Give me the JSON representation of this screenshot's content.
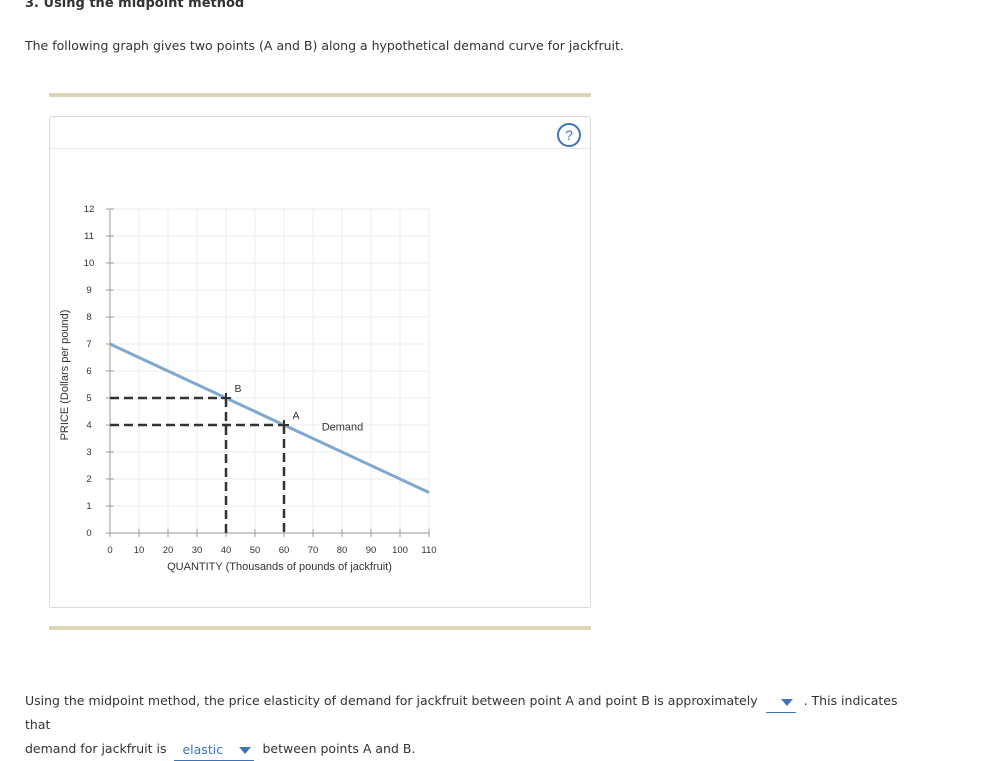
{
  "page": {
    "heading": "3. Using the midpoint method",
    "intro": "The following graph gives two points (A and B) along a hypothetical demand curve for jackfruit."
  },
  "panel": {
    "help_label": "?"
  },
  "chart_data": {
    "type": "line",
    "xlabel": "QUANTITY (Thousands of pounds of jackfruit)",
    "ylabel": "PRICE (Dollars per pound)",
    "xlim": [
      0,
      110
    ],
    "ylim": [
      0,
      12
    ],
    "xticks": [
      0,
      10,
      20,
      30,
      40,
      50,
      60,
      70,
      80,
      90,
      100,
      110
    ],
    "yticks": [
      0,
      1,
      2,
      3,
      4,
      5,
      6,
      7,
      8,
      9,
      10,
      11,
      12
    ],
    "grid": true,
    "series": [
      {
        "name": "Demand",
        "color": "#7fa8d1",
        "x": [
          0,
          110
        ],
        "y": [
          7,
          1.5
        ]
      }
    ],
    "points": [
      {
        "label": "A",
        "x": 60,
        "y": 4
      },
      {
        "label": "B",
        "x": 40,
        "y": 5
      }
    ],
    "curve_label": "Demand"
  },
  "question": {
    "part1": "Using the midpoint method, the price elasticity of demand for jackfruit between point A and point B is approximately",
    "dropdown1_value": "",
    "part2": ". This indicates that",
    "part3": "demand for jackfruit is",
    "dropdown2_value": "elastic",
    "part4": "between points A and B."
  }
}
